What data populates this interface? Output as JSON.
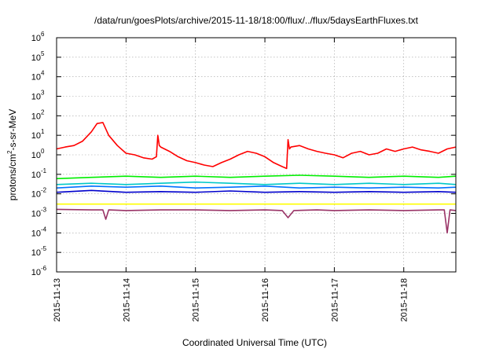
{
  "chart_data": {
    "type": "line",
    "title": "/data/run/goesPlots/archive/2015-11-18/18:00/flux/../flux/5daysEarthFluxes.txt",
    "xlabel": "Coordinated Universal Time (UTC)",
    "ylabel": {
      "prefix": "protons/cm",
      "sup": "2",
      "suffix": "-s-sr-MeV"
    },
    "y_scale": "log",
    "ylim": [
      1e-06,
      1000000.0
    ],
    "xlim": [
      "2015-11-13 00:00",
      "2015-11-18 18:00"
    ],
    "grid": true,
    "legend": "none",
    "y_ticks": [
      {
        "base": "10",
        "exp": "-6"
      },
      {
        "base": "10",
        "exp": "-5"
      },
      {
        "base": "10",
        "exp": "-4"
      },
      {
        "base": "10",
        "exp": "-3"
      },
      {
        "base": "10",
        "exp": "-2"
      },
      {
        "base": "10",
        "exp": "-1"
      },
      {
        "base": "10",
        "exp": "0"
      },
      {
        "base": "10",
        "exp": "1"
      },
      {
        "base": "10",
        "exp": "2"
      },
      {
        "base": "10",
        "exp": "3"
      },
      {
        "base": "10",
        "exp": "4"
      },
      {
        "base": "10",
        "exp": "5"
      },
      {
        "base": "10",
        "exp": "6"
      }
    ],
    "x_ticks": [
      "2015-11-13",
      "2015-11-14",
      "2015-11-15",
      "2015-11-16",
      "2015-11-17",
      "2015-11-18"
    ],
    "series": [
      {
        "color": "#ff0000",
        "x": [
          "2015-11-13 00:00",
          "2015-11-13 03:00",
          "2015-11-13 06:00",
          "2015-11-13 09:00",
          "2015-11-13 12:00",
          "2015-11-13 14:00",
          "2015-11-13 16:00",
          "2015-11-13 18:00",
          "2015-11-13 21:00",
          "2015-11-14 00:00",
          "2015-11-14 03:00",
          "2015-11-14 06:00",
          "2015-11-14 09:00",
          "2015-11-14 10:30",
          "2015-11-14 11:00",
          "2015-11-14 11:30",
          "2015-11-14 12:00",
          "2015-11-14 15:00",
          "2015-11-14 18:00",
          "2015-11-14 21:00",
          "2015-11-15 00:00",
          "2015-11-15 03:00",
          "2015-11-15 06:00",
          "2015-11-15 09:00",
          "2015-11-15 12:00",
          "2015-11-15 15:00",
          "2015-11-15 18:00",
          "2015-11-15 21:00",
          "2015-11-16 00:00",
          "2015-11-16 03:00",
          "2015-11-16 06:00",
          "2015-11-16 07:30",
          "2015-11-16 08:00",
          "2015-11-16 08:30",
          "2015-11-16 09:00",
          "2015-11-16 12:00",
          "2015-11-16 15:00",
          "2015-11-16 18:00",
          "2015-11-16 21:00",
          "2015-11-17 00:00",
          "2015-11-17 03:00",
          "2015-11-17 06:00",
          "2015-11-17 09:00",
          "2015-11-17 12:00",
          "2015-11-17 15:00",
          "2015-11-17 18:00",
          "2015-11-17 21:00",
          "2015-11-18 00:00",
          "2015-11-18 03:00",
          "2015-11-18 06:00",
          "2015-11-18 09:00",
          "2015-11-18 12:00",
          "2015-11-18 15:00",
          "2015-11-18 18:00"
        ],
        "y": [
          2.0,
          2.5,
          3.0,
          5.0,
          15,
          40,
          45,
          10,
          3.0,
          1.2,
          1.0,
          0.7,
          0.6,
          0.8,
          10,
          3.0,
          2.5,
          1.5,
          0.8,
          0.5,
          0.4,
          0.3,
          0.25,
          0.4,
          0.6,
          1.0,
          1.5,
          1.2,
          0.8,
          0.4,
          0.25,
          0.2,
          6.0,
          2.0,
          2.5,
          3.0,
          2.0,
          1.5,
          1.2,
          1.0,
          0.7,
          1.2,
          1.5,
          1.0,
          1.2,
          2.0,
          1.5,
          2.0,
          2.5,
          1.8,
          1.5,
          1.2,
          2.0,
          2.5
        ]
      },
      {
        "color": "#00ee00",
        "x": [
          "2015-11-13 00:00",
          "2015-11-13 12:00",
          "2015-11-14 00:00",
          "2015-11-14 12:00",
          "2015-11-15 00:00",
          "2015-11-15 12:00",
          "2015-11-16 00:00",
          "2015-11-16 12:00",
          "2015-11-17 00:00",
          "2015-11-17 12:00",
          "2015-11-18 00:00",
          "2015-11-18 12:00",
          "2015-11-18 18:00"
        ],
        "y": [
          0.06,
          0.07,
          0.08,
          0.07,
          0.08,
          0.07,
          0.08,
          0.09,
          0.08,
          0.07,
          0.08,
          0.07,
          0.08
        ]
      },
      {
        "color": "#00c8c8",
        "x": [
          "2015-11-13 00:00",
          "2015-11-13 12:00",
          "2015-11-14 00:00",
          "2015-11-14 12:00",
          "2015-11-15 00:00",
          "2015-11-15 12:00",
          "2015-11-16 00:00",
          "2015-11-16 12:00",
          "2015-11-17 00:00",
          "2015-11-17 12:00",
          "2015-11-18 00:00",
          "2015-11-18 12:00",
          "2015-11-18 18:00"
        ],
        "y": [
          0.03,
          0.035,
          0.03,
          0.035,
          0.04,
          0.035,
          0.03,
          0.035,
          0.03,
          0.035,
          0.03,
          0.035,
          0.03
        ]
      },
      {
        "color": "#0070ff",
        "x": [
          "2015-11-13 00:00",
          "2015-11-13 12:00",
          "2015-11-14 00:00",
          "2015-11-14 12:00",
          "2015-11-15 00:00",
          "2015-11-15 12:00",
          "2015-11-16 00:00",
          "2015-11-16 12:00",
          "2015-11-17 00:00",
          "2015-11-17 12:00",
          "2015-11-18 00:00",
          "2015-11-18 12:00",
          "2015-11-18 18:00"
        ],
        "y": [
          0.02,
          0.025,
          0.022,
          0.025,
          0.02,
          0.022,
          0.025,
          0.02,
          0.022,
          0.02,
          0.022,
          0.02,
          0.022
        ]
      },
      {
        "color": "#0000cc",
        "x": [
          "2015-11-13 00:00",
          "2015-11-13 12:00",
          "2015-11-14 00:00",
          "2015-11-14 12:00",
          "2015-11-15 00:00",
          "2015-11-15 12:00",
          "2015-11-16 00:00",
          "2015-11-16 12:00",
          "2015-11-17 00:00",
          "2015-11-17 12:00",
          "2015-11-18 00:00",
          "2015-11-18 12:00",
          "2015-11-18 18:00"
        ],
        "y": [
          0.012,
          0.015,
          0.012,
          0.013,
          0.012,
          0.014,
          0.012,
          0.013,
          0.012,
          0.013,
          0.012,
          0.013,
          0.012
        ]
      },
      {
        "color": "#ffff00",
        "x": [
          "2015-11-13 00:00",
          "2015-11-13 12:00",
          "2015-11-14 00:00",
          "2015-11-14 12:00",
          "2015-11-15 00:00",
          "2015-11-15 12:00",
          "2015-11-16 00:00",
          "2015-11-16 12:00",
          "2015-11-17 00:00",
          "2015-11-17 12:00",
          "2015-11-18 00:00",
          "2015-11-18 12:00",
          "2015-11-18 18:00"
        ],
        "y": [
          0.003,
          0.003,
          0.003,
          0.003,
          0.003,
          0.003,
          0.003,
          0.003,
          0.003,
          0.003,
          0.003,
          0.003,
          0.003
        ]
      },
      {
        "color": "#993366",
        "x": [
          "2015-11-13 00:00",
          "2015-11-13 12:00",
          "2015-11-13 16:00",
          "2015-11-13 17:00",
          "2015-11-13 18:00",
          "2015-11-14 00:00",
          "2015-11-14 12:00",
          "2015-11-15 00:00",
          "2015-11-15 12:00",
          "2015-11-16 00:00",
          "2015-11-16 06:00",
          "2015-11-16 08:00",
          "2015-11-16 10:00",
          "2015-11-16 18:00",
          "2015-11-17 00:00",
          "2015-11-17 12:00",
          "2015-11-18 00:00",
          "2015-11-18 12:00",
          "2015-11-18 14:00",
          "2015-11-18 15:00",
          "2015-11-18 16:00",
          "2015-11-18 18:00"
        ],
        "y": [
          0.0016,
          0.0015,
          0.0015,
          0.0005,
          0.0015,
          0.0014,
          0.0015,
          0.0015,
          0.0014,
          0.0015,
          0.0014,
          0.0006,
          0.0014,
          0.0015,
          0.0014,
          0.0015,
          0.0014,
          0.0015,
          0.0015,
          0.0001,
          0.0015,
          0.0014
        ]
      }
    ]
  }
}
